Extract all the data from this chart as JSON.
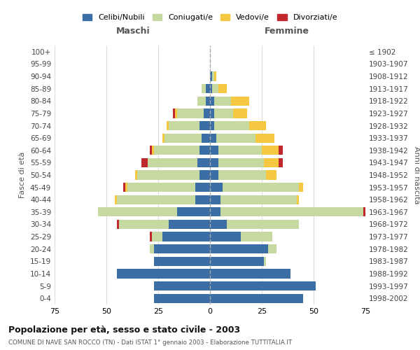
{
  "age_groups": [
    "0-4",
    "5-9",
    "10-14",
    "15-19",
    "20-24",
    "25-29",
    "30-34",
    "35-39",
    "40-44",
    "45-49",
    "50-54",
    "55-59",
    "60-64",
    "65-69",
    "70-74",
    "75-79",
    "80-84",
    "85-89",
    "90-94",
    "95-99",
    "100+"
  ],
  "birth_years": [
    "1998-2002",
    "1993-1997",
    "1988-1992",
    "1983-1987",
    "1978-1982",
    "1973-1977",
    "1968-1972",
    "1963-1967",
    "1958-1962",
    "1953-1957",
    "1948-1952",
    "1943-1947",
    "1938-1942",
    "1933-1937",
    "1928-1932",
    "1923-1927",
    "1918-1922",
    "1913-1917",
    "1908-1912",
    "1903-1907",
    "≤ 1902"
  ],
  "male": {
    "celibe": [
      27,
      27,
      45,
      27,
      27,
      23,
      20,
      16,
      7,
      7,
      5,
      6,
      5,
      4,
      5,
      3,
      2,
      2,
      0,
      0,
      0
    ],
    "coniugato": [
      0,
      0,
      0,
      0,
      2,
      5,
      24,
      38,
      38,
      33,
      30,
      24,
      22,
      18,
      15,
      13,
      4,
      2,
      0,
      0,
      0
    ],
    "vedovo": [
      0,
      0,
      0,
      0,
      0,
      0,
      0,
      0,
      1,
      1,
      1,
      0,
      1,
      1,
      1,
      1,
      0,
      0,
      0,
      0,
      0
    ],
    "divorziato": [
      0,
      0,
      0,
      0,
      0,
      1,
      1,
      0,
      0,
      1,
      0,
      3,
      1,
      0,
      0,
      1,
      0,
      0,
      0,
      0,
      0
    ]
  },
  "female": {
    "nubile": [
      45,
      51,
      39,
      26,
      28,
      15,
      8,
      5,
      5,
      6,
      4,
      4,
      4,
      3,
      2,
      2,
      2,
      1,
      1,
      0,
      0
    ],
    "coniugata": [
      0,
      0,
      0,
      1,
      4,
      15,
      35,
      69,
      37,
      37,
      23,
      22,
      21,
      19,
      17,
      9,
      8,
      3,
      1,
      0,
      0
    ],
    "vedova": [
      0,
      0,
      0,
      0,
      0,
      0,
      0,
      0,
      1,
      2,
      5,
      7,
      8,
      9,
      8,
      7,
      9,
      4,
      1,
      0,
      0
    ],
    "divorziata": [
      0,
      0,
      0,
      0,
      0,
      0,
      0,
      2,
      0,
      0,
      0,
      2,
      2,
      0,
      0,
      0,
      0,
      0,
      0,
      0,
      0
    ]
  },
  "colors": {
    "celibe": "#3a6ea5",
    "coniugato": "#c5d9a0",
    "vedovo": "#f5c842",
    "divorziato": "#c0282d"
  },
  "legend_labels": [
    "Celibi/Nubili",
    "Coniugati/e",
    "Vedovi/e",
    "Divorziati/e"
  ],
  "title": "Popolazione per età, sesso e stato civile - 2003",
  "subtitle": "COMUNE DI NAVE SAN ROCCO (TN) - Dati ISTAT 1° gennaio 2003 - Elaborazione TUTTITALIA.IT",
  "xlabel_left": "Maschi",
  "xlabel_right": "Femmine",
  "ylabel_left": "Fasce di età",
  "ylabel_right": "Anni di nascita",
  "xlim": 75,
  "background_color": "#ffffff",
  "grid_color": "#cccccc",
  "maschi_color": "#555555",
  "femmine_color": "#555555"
}
